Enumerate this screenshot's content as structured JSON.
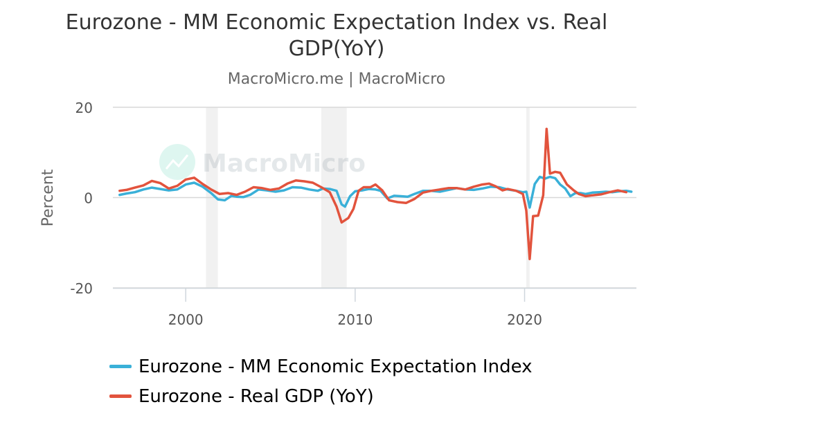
{
  "chart_data": {
    "type": "line",
    "title": "Eurozone - MM Economic Expectation Index vs. Real GDP(YoY)",
    "subtitle": "MacroMicro.me | MacroMicro",
    "watermark": "MacroMicro",
    "ylabel": "Percent",
    "xlim": [
      1995.7,
      2026.6
    ],
    "ylim": [
      -20,
      20
    ],
    "x_ticks": [
      2000,
      2010,
      2020
    ],
    "y_ticks": [
      20,
      0,
      -20
    ],
    "grid": "horizontal",
    "legend_position": "bottom-left",
    "recession_shading": [
      [
        2001.2,
        2001.9
      ],
      [
        2008.0,
        2009.5
      ],
      [
        2020.1,
        2020.3
      ]
    ],
    "series": [
      {
        "name": "Eurozone - MM Economic Expectation Index",
        "color": "#3ab0d8",
        "x": [
          1996.1,
          1996.5,
          1997.0,
          1997.5,
          1998.0,
          1998.5,
          1999.0,
          1999.5,
          2000.0,
          2000.5,
          2001.0,
          2001.5,
          2001.9,
          2002.3,
          2002.7,
          2003.0,
          2003.4,
          2003.8,
          2004.3,
          2004.8,
          2005.3,
          2005.8,
          2006.3,
          2006.8,
          2007.3,
          2007.8,
          2008.1,
          2008.5,
          2008.9,
          2009.2,
          2009.4,
          2009.7,
          2010.0,
          2010.4,
          2010.8,
          2011.2,
          2011.5,
          2011.9,
          2012.3,
          2012.7,
          2013.1,
          2013.5,
          2014.0,
          2014.5,
          2015.0,
          2015.5,
          2016.0,
          2016.5,
          2017.0,
          2017.5,
          2018.0,
          2018.5,
          2019.0,
          2019.5,
          2019.9,
          2020.1,
          2020.3,
          2020.6,
          2020.9,
          2021.2,
          2021.5,
          2021.8,
          2022.1,
          2022.4,
          2022.7,
          2023.0,
          2023.3,
          2023.6,
          2024.0,
          2024.4,
          2024.8,
          2025.2,
          2025.6,
          2026.0,
          2026.3
        ],
        "values": [
          0.6,
          0.9,
          1.2,
          1.8,
          2.2,
          1.9,
          1.6,
          1.8,
          2.9,
          3.3,
          2.4,
          1.0,
          -0.4,
          -0.6,
          0.4,
          0.2,
          0.1,
          0.6,
          1.8,
          1.6,
          1.3,
          1.6,
          2.3,
          2.2,
          1.8,
          1.5,
          2.0,
          1.9,
          1.5,
          -1.5,
          -2.0,
          0.3,
          1.4,
          1.6,
          1.9,
          1.8,
          1.5,
          -0.2,
          0.4,
          0.3,
          0.2,
          0.8,
          1.5,
          1.5,
          1.3,
          1.7,
          2.1,
          1.8,
          1.7,
          2.0,
          2.4,
          2.3,
          1.8,
          1.5,
          1.2,
          1.3,
          -2.2,
          3.0,
          4.6,
          4.2,
          4.6,
          4.3,
          2.9,
          2.0,
          0.3,
          1.0,
          1.0,
          0.8,
          1.1,
          1.2,
          1.3,
          1.2,
          1.4,
          1.5,
          1.3
        ]
      },
      {
        "name": "Eurozone - Real GDP (YoY)",
        "color": "#e2533d",
        "x": [
          1996.1,
          1996.5,
          1997.0,
          1997.5,
          1998.0,
          1998.5,
          1999.0,
          1999.5,
          2000.0,
          2000.5,
          2001.0,
          2001.5,
          2002.0,
          2002.5,
          2003.0,
          2003.5,
          2004.0,
          2004.5,
          2005.0,
          2005.5,
          2006.0,
          2006.5,
          2007.0,
          2007.5,
          2008.0,
          2008.5,
          2008.9,
          2009.2,
          2009.6,
          2009.9,
          2010.2,
          2010.5,
          2010.9,
          2011.2,
          2011.6,
          2012.0,
          2012.5,
          2013.0,
          2013.5,
          2014.0,
          2014.5,
          2015.0,
          2015.5,
          2016.0,
          2016.5,
          2017.0,
          2017.5,
          2017.9,
          2018.3,
          2018.7,
          2019.0,
          2019.5,
          2019.9,
          2020.1,
          2020.3,
          2020.5,
          2020.8,
          2021.1,
          2021.3,
          2021.5,
          2021.8,
          2022.1,
          2022.5,
          2022.9,
          2023.2,
          2023.6,
          2024.0,
          2024.5,
          2025.0,
          2025.5,
          2026.0
        ],
        "values": [
          1.5,
          1.7,
          2.2,
          2.7,
          3.7,
          3.2,
          2.0,
          2.6,
          4.0,
          4.4,
          3.0,
          1.8,
          0.8,
          1.0,
          0.6,
          1.3,
          2.3,
          2.1,
          1.7,
          2.0,
          3.1,
          3.8,
          3.6,
          3.3,
          2.3,
          1.2,
          -2.0,
          -5.5,
          -4.5,
          -2.5,
          1.5,
          2.3,
          2.3,
          2.9,
          1.6,
          -0.6,
          -1.0,
          -1.2,
          -0.3,
          1.1,
          1.5,
          1.8,
          2.1,
          2.1,
          1.8,
          2.4,
          2.9,
          3.1,
          2.5,
          1.6,
          1.9,
          1.5,
          0.8,
          -2.9,
          -13.6,
          -4.1,
          -4.0,
          0.5,
          15.2,
          5.3,
          5.7,
          5.5,
          2.9,
          1.6,
          0.8,
          0.3,
          0.5,
          0.7,
          1.2,
          1.6,
          1.2
        ]
      }
    ]
  }
}
